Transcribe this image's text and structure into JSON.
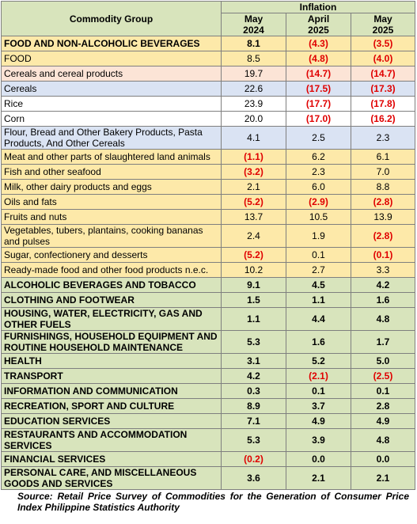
{
  "header": {
    "title": "Commodity Group",
    "group": "Inflation",
    "columns": [
      {
        "line1": "May",
        "line2": "2024"
      },
      {
        "line1": "April",
        "line2": "2025"
      },
      {
        "line1": "May",
        "line2": "2025"
      }
    ],
    "background": "#d8e4bc"
  },
  "table": {
    "rows": [
      {
        "label": "FOOD AND NON-ALCOHOLIC BEVERAGES",
        "values": [
          "8.1",
          "(4.3)",
          "(3.5)"
        ],
        "bold": true,
        "background": "#fde9a9"
      },
      {
        "label": "FOOD",
        "values": [
          "8.5",
          "(4.8)",
          "(4.0)"
        ],
        "bold": false,
        "background": "#fde9a9"
      },
      {
        "label": "Cereals and cereal products",
        "values": [
          "19.7",
          "(14.7)",
          "(14.7)"
        ],
        "bold": false,
        "background": "#fce4d6"
      },
      {
        "label": "Cereals",
        "values": [
          "22.6",
          "(17.5)",
          "(17.3)"
        ],
        "bold": false,
        "background": "#dae3f3"
      },
      {
        "label": "Rice",
        "values": [
          "23.9",
          "(17.7)",
          "(17.8)"
        ],
        "bold": false,
        "background": "#ffffff"
      },
      {
        "label": "Corn",
        "values": [
          "20.0",
          "(17.0)",
          "(16.2)"
        ],
        "bold": false,
        "background": "#ffffff"
      },
      {
        "label": "Flour, Bread and Other Bakery Products, Pasta Products, And Other Cereals",
        "values": [
          "4.1",
          "2.5",
          "2.3"
        ],
        "bold": false,
        "background": "#dae3f3"
      },
      {
        "label": "Meat and other parts of slaughtered land animals",
        "values": [
          "(1.1)",
          "6.2",
          "6.1"
        ],
        "bold": false,
        "background": "#fde9a9"
      },
      {
        "label": "Fish and other seafood",
        "values": [
          "(3.2)",
          "2.3",
          "7.0"
        ],
        "bold": false,
        "background": "#fde9a9"
      },
      {
        "label": "Milk, other dairy products and eggs",
        "values": [
          "2.1",
          "6.0",
          "8.8"
        ],
        "bold": false,
        "background": "#fde9a9"
      },
      {
        "label": "Oils and fats",
        "values": [
          "(5.2)",
          "(2.9)",
          "(2.8)"
        ],
        "bold": false,
        "background": "#fde9a9"
      },
      {
        "label": "Fruits and nuts",
        "values": [
          "13.7",
          "10.5",
          "13.9"
        ],
        "bold": false,
        "background": "#fde9a9"
      },
      {
        "label": "Vegetables, tubers, plantains, cooking bananas and pulses",
        "values": [
          "2.4",
          "1.9",
          "(2.8)"
        ],
        "bold": false,
        "background": "#fde9a9"
      },
      {
        "label": "Sugar, confectionery and desserts",
        "values": [
          "(5.2)",
          "0.1",
          "(0.1)"
        ],
        "bold": false,
        "background": "#fde9a9"
      },
      {
        "label": "Ready-made food and other food products n.e.c.",
        "values": [
          "10.2",
          "2.7",
          "3.3"
        ],
        "bold": false,
        "background": "#fde9a9"
      },
      {
        "label": "ALCOHOLIC BEVERAGES AND TOBACCO",
        "values": [
          "9.1",
          "4.5",
          "4.2"
        ],
        "bold": true,
        "background": "#d8e4bc"
      },
      {
        "label": "CLOTHING AND FOOTWEAR",
        "values": [
          "1.5",
          "1.1",
          "1.6"
        ],
        "bold": true,
        "background": "#d8e4bc"
      },
      {
        "label": "HOUSING, WATER, ELECTRICITY, GAS AND OTHER FUELS",
        "values": [
          "1.1",
          "4.4",
          "4.8"
        ],
        "bold": true,
        "background": "#d8e4bc"
      },
      {
        "label": "FURNISHINGS, HOUSEHOLD EQUIPMENT AND ROUTINE HOUSEHOLD MAINTENANCE",
        "values": [
          "5.3",
          "1.6",
          "1.7"
        ],
        "bold": true,
        "background": "#d8e4bc"
      },
      {
        "label": "HEALTH",
        "values": [
          "3.1",
          "5.2",
          "5.0"
        ],
        "bold": true,
        "background": "#d8e4bc"
      },
      {
        "label": "TRANSPORT",
        "values": [
          "4.2",
          "(2.1)",
          "(2.5)"
        ],
        "bold": true,
        "background": "#d8e4bc"
      },
      {
        "label": "INFORMATION AND COMMUNICATION",
        "values": [
          "0.3",
          "0.1",
          "0.1"
        ],
        "bold": true,
        "background": "#d8e4bc"
      },
      {
        "label": "RECREATION, SPORT AND CULTURE",
        "values": [
          "8.9",
          "3.7",
          "2.8"
        ],
        "bold": true,
        "background": "#d8e4bc"
      },
      {
        "label": "EDUCATION SERVICES",
        "values": [
          "7.1",
          "4.9",
          "4.9"
        ],
        "bold": true,
        "background": "#d8e4bc"
      },
      {
        "label": "RESTAURANTS AND ACCOMMODATION SERVICES",
        "values": [
          "5.3",
          "3.9",
          "4.8"
        ],
        "bold": true,
        "background": "#d8e4bc"
      },
      {
        "label": "FINANCIAL SERVICES",
        "values": [
          "(0.2)",
          "0.0",
          "0.0"
        ],
        "bold": true,
        "background": "#d8e4bc"
      },
      {
        "label": "PERSONAL CARE, AND MISCELLANEOUS GOODS AND SERVICES",
        "values": [
          "3.6",
          "2.1",
          "2.1"
        ],
        "bold": true,
        "background": "#d8e4bc"
      }
    ]
  },
  "footer": {
    "source": "Source: Retail Price Survey of Commodities for the Generation of Consumer Price Index Philippine Statistics Authority"
  }
}
